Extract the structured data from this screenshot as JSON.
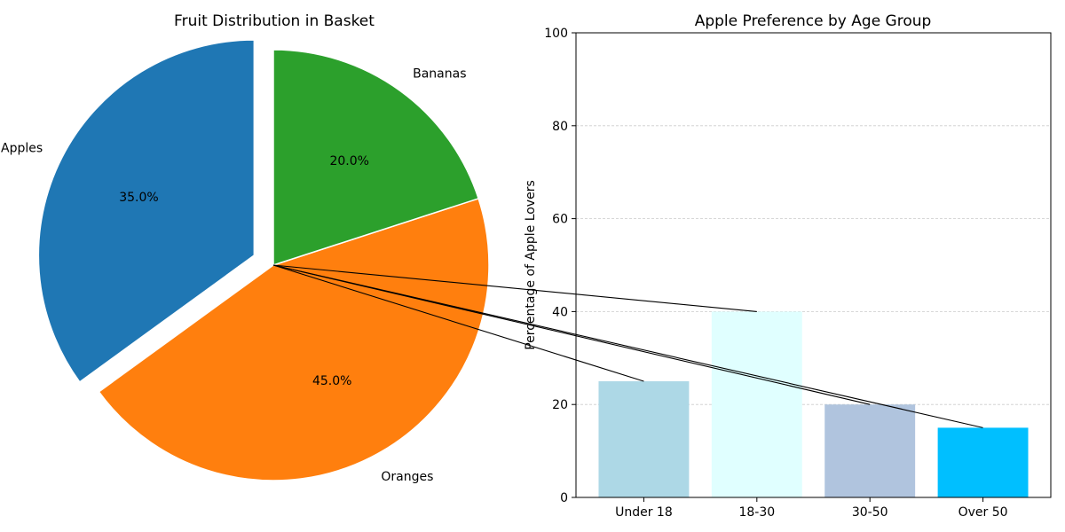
{
  "chart_data": [
    {
      "type": "pie",
      "title": "Fruit Distribution in Basket",
      "categories": [
        "Apples",
        "Oranges",
        "Bananas"
      ],
      "values": [
        35,
        45,
        20
      ],
      "percent_labels": [
        "35.0%",
        "45.0%",
        "20.0%"
      ],
      "colors": [
        "#1f77b4",
        "#ff7f0e",
        "#2ca02c"
      ],
      "explode": [
        0.1,
        0,
        0
      ],
      "start_angle_deg": 90
    },
    {
      "type": "bar",
      "title": "Apple Preference by Age Group",
      "categories": [
        "Under 18",
        "18-30",
        "30-50",
        "Over 50"
      ],
      "values": [
        25,
        40,
        20,
        15
      ],
      "colors": [
        "#add8e6",
        "#e0ffff",
        "#b0c4de",
        "#00bfff"
      ],
      "xlabel": "",
      "ylabel": "Percentage of Apple Lovers",
      "ylim": [
        0,
        100
      ],
      "yticks": [
        0,
        20,
        40,
        60,
        80,
        100
      ],
      "grid": "y-dashed"
    }
  ]
}
